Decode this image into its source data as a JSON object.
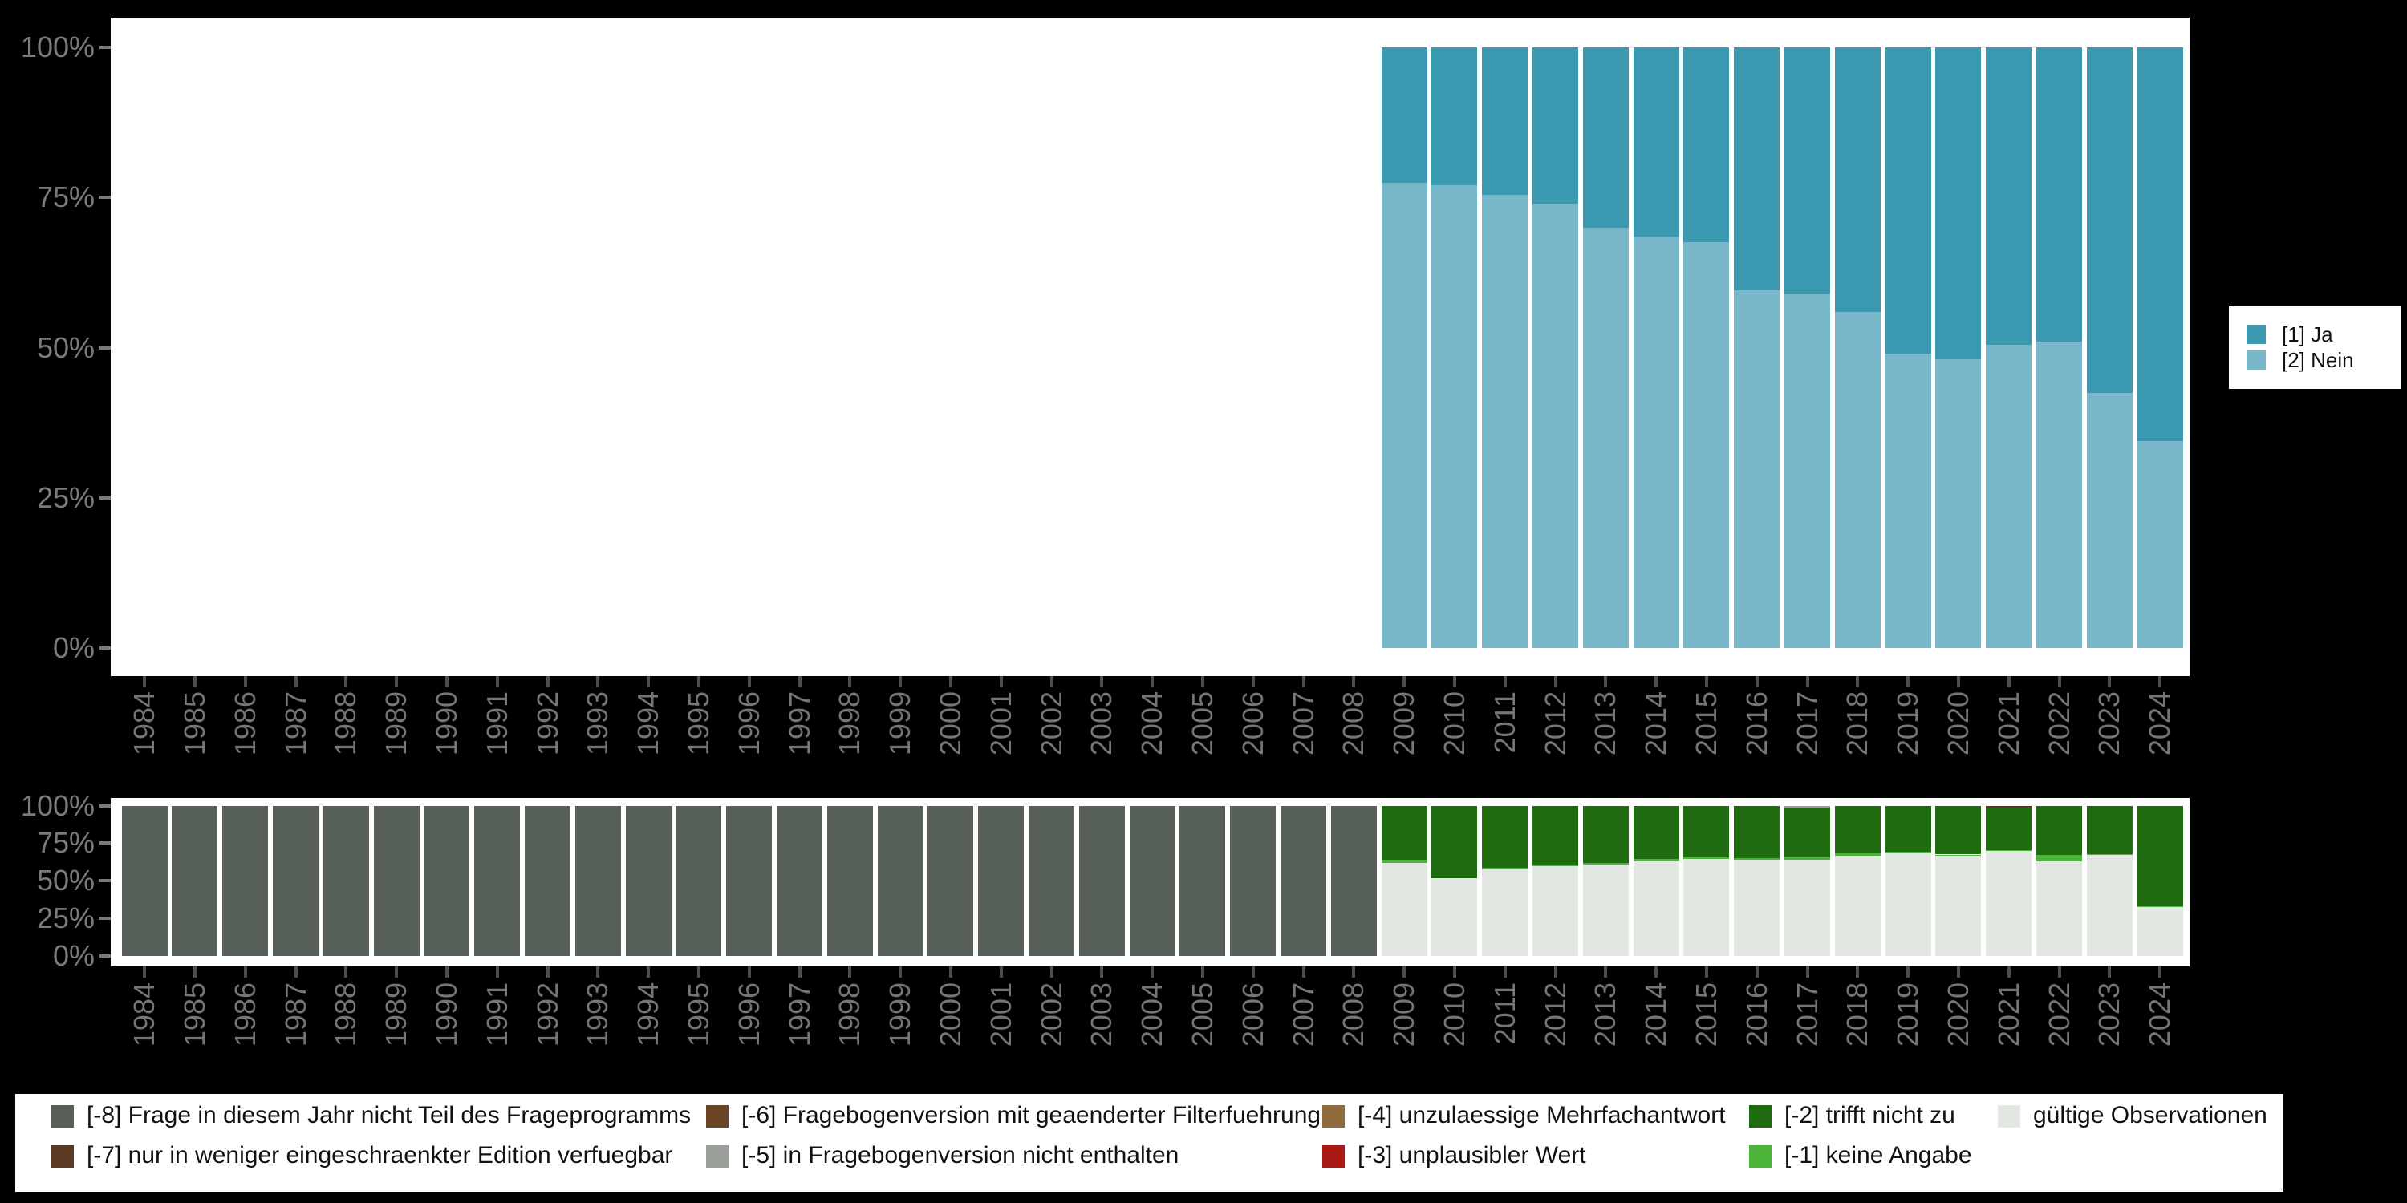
{
  "colors": {
    "ja": "#3a98b1",
    "nein": "#79b7ca",
    "m8": "#58605a",
    "m7": "#5a3a22",
    "m6": "#6b4423",
    "m5": "#9a9f9a",
    "m4": "#916b3e",
    "m3": "#a91a14",
    "m2": "#1f6d10",
    "m1": "#4cb43a",
    "valid": "#e3e7e1"
  },
  "axis": {
    "y_tick_labels": [
      "0%",
      "25%",
      "50%",
      "75%",
      "100%"
    ],
    "years": [
      1984,
      1985,
      1986,
      1987,
      1988,
      1989,
      1990,
      1991,
      1992,
      1993,
      1994,
      1995,
      1996,
      1997,
      1998,
      1999,
      2000,
      2001,
      2002,
      2003,
      2004,
      2005,
      2006,
      2007,
      2008,
      2009,
      2010,
      2011,
      2012,
      2013,
      2014,
      2015,
      2016,
      2017,
      2018,
      2019,
      2020,
      2021,
      2022,
      2023,
      2024
    ]
  },
  "top_legend": {
    "items": [
      {
        "label": "[1] Ja",
        "color_key": "ja"
      },
      {
        "label": "[2] Nein",
        "color_key": "nein"
      }
    ]
  },
  "bottom_legend": {
    "rows": [
      [
        {
          "label": "[-8] Frage in diesem Jahr nicht Teil des Frageprogramms",
          "color_key": "m8"
        },
        {
          "label": "[-6] Fragebogenversion mit geaenderter Filterfuehrung",
          "color_key": "m6"
        },
        {
          "label": "[-4] unzulaessige Mehrfachantwort",
          "color_key": "m4"
        },
        {
          "label": "[-2] trifft nicht zu",
          "color_key": "m2"
        },
        {
          "label": "gültige Observationen",
          "color_key": "valid"
        }
      ],
      [
        {
          "label": "[-7] nur in weniger eingeschraenkter Edition verfuegbar",
          "color_key": "m7"
        },
        {
          "label": "[-5] in Fragebogenversion nicht enthalten",
          "color_key": "m5"
        },
        {
          "label": "[-3] unplausibler Wert",
          "color_key": "m3"
        },
        {
          "label": "[-1] keine Angabe",
          "color_key": "m1"
        }
      ]
    ]
  },
  "chart_data": [
    {
      "type": "bar",
      "stacked": true,
      "title": "",
      "xlabel": "",
      "ylabel": "",
      "ylim": [
        0,
        100
      ],
      "yticks": [
        "0%",
        "25%",
        "50%",
        "75%",
        "100%"
      ],
      "grid": false,
      "legend_position": "right",
      "x_axis_categories": [
        1984,
        1985,
        1986,
        1987,
        1988,
        1989,
        1990,
        1991,
        1992,
        1993,
        1994,
        1995,
        1996,
        1997,
        1998,
        1999,
        2000,
        2001,
        2002,
        2003,
        2004,
        2005,
        2006,
        2007,
        2008,
        2009,
        2010,
        2011,
        2012,
        2013,
        2014,
        2015,
        2016,
        2017,
        2018,
        2019,
        2020,
        2021,
        2022,
        2023,
        2024
      ],
      "categories": [
        2009,
        2010,
        2011,
        2012,
        2013,
        2014,
        2015,
        2016,
        2017,
        2018,
        2019,
        2020,
        2021,
        2022,
        2023,
        2024
      ],
      "series": [
        {
          "name": "[1] Ja",
          "color_key": "ja",
          "values": [
            22.5,
            23,
            24.5,
            26,
            30,
            31.5,
            32.5,
            40.5,
            41,
            44,
            51,
            52,
            49.5,
            49,
            57.5,
            65.5
          ]
        },
        {
          "name": "[2] Nein",
          "color_key": "nein",
          "values": [
            77.5,
            77,
            75.5,
            74,
            70,
            68.5,
            67.5,
            59.5,
            59,
            56,
            49,
            48,
            50.5,
            51,
            42.5,
            34.5
          ]
        }
      ],
      "note_no_bars_before": 2009
    },
    {
      "type": "bar",
      "stacked": true,
      "title": "",
      "xlabel": "",
      "ylabel": "",
      "ylim": [
        0,
        100
      ],
      "yticks": [
        "0%",
        "25%",
        "50%",
        "75%",
        "100%"
      ],
      "grid": false,
      "categories": [
        1984,
        1985,
        1986,
        1987,
        1988,
        1989,
        1990,
        1991,
        1992,
        1993,
        1994,
        1995,
        1996,
        1997,
        1998,
        1999,
        2000,
        2001,
        2002,
        2003,
        2004,
        2005,
        2006,
        2007,
        2008,
        2009,
        2010,
        2011,
        2012,
        2013,
        2014,
        2015,
        2016,
        2017,
        2018,
        2019,
        2020,
        2021,
        2022,
        2023,
        2024
      ],
      "segments_by_year": {
        "1984": [
          [
            "m8",
            100
          ]
        ],
        "1985": [
          [
            "m8",
            100
          ]
        ],
        "1986": [
          [
            "m8",
            100
          ]
        ],
        "1987": [
          [
            "m8",
            100
          ]
        ],
        "1988": [
          [
            "m8",
            100
          ]
        ],
        "1989": [
          [
            "m8",
            100
          ]
        ],
        "1990": [
          [
            "m8",
            100
          ]
        ],
        "1991": [
          [
            "m8",
            100
          ]
        ],
        "1992": [
          [
            "m8",
            100
          ]
        ],
        "1993": [
          [
            "m8",
            100
          ]
        ],
        "1994": [
          [
            "m8",
            100
          ]
        ],
        "1995": [
          [
            "m8",
            100
          ]
        ],
        "1996": [
          [
            "m8",
            100
          ]
        ],
        "1997": [
          [
            "m8",
            100
          ]
        ],
        "1998": [
          [
            "m8",
            100
          ]
        ],
        "1999": [
          [
            "m8",
            100
          ]
        ],
        "2000": [
          [
            "m8",
            100
          ]
        ],
        "2001": [
          [
            "m8",
            100
          ]
        ],
        "2002": [
          [
            "m8",
            100
          ]
        ],
        "2003": [
          [
            "m8",
            100
          ]
        ],
        "2004": [
          [
            "m8",
            100
          ]
        ],
        "2005": [
          [
            "m8",
            100
          ]
        ],
        "2006": [
          [
            "m8",
            100
          ]
        ],
        "2007": [
          [
            "m8",
            100
          ]
        ],
        "2008": [
          [
            "m8",
            100
          ]
        ],
        "2009": [
          [
            "valid",
            62
          ],
          [
            "m1",
            2
          ],
          [
            "m2",
            36
          ]
        ],
        "2010": [
          [
            "valid",
            51.5
          ],
          [
            "m2",
            48.5
          ]
        ],
        "2011": [
          [
            "valid",
            57.5
          ],
          [
            "m1",
            1
          ],
          [
            "m2",
            41.5
          ]
        ],
        "2012": [
          [
            "valid",
            60
          ],
          [
            "m1",
            1
          ],
          [
            "m2",
            39
          ]
        ],
        "2013": [
          [
            "valid",
            61
          ],
          [
            "m1",
            1
          ],
          [
            "m2",
            38
          ]
        ],
        "2014": [
          [
            "valid",
            63
          ],
          [
            "m1",
            1.5
          ],
          [
            "m2",
            35.5
          ]
        ],
        "2015": [
          [
            "valid",
            64.5
          ],
          [
            "m1",
            1
          ],
          [
            "m2",
            34.5
          ]
        ],
        "2016": [
          [
            "valid",
            64
          ],
          [
            "m1",
            1
          ],
          [
            "m2",
            35
          ]
        ],
        "2017": [
          [
            "valid",
            64
          ],
          [
            "m1",
            1.5
          ],
          [
            "m2",
            33
          ],
          [
            "m5",
            1.5
          ]
        ],
        "2018": [
          [
            "valid",
            66.5
          ],
          [
            "m1",
            2
          ],
          [
            "m2",
            31.5
          ]
        ],
        "2019": [
          [
            "valid",
            69
          ],
          [
            "m1",
            0.5
          ],
          [
            "m2",
            30.5
          ]
        ],
        "2020": [
          [
            "valid",
            66.5
          ],
          [
            "m1",
            1
          ],
          [
            "m2",
            32.5
          ]
        ],
        "2021": [
          [
            "valid",
            70
          ],
          [
            "m1",
            0.5
          ],
          [
            "m2",
            28
          ],
          [
            "m7",
            1.5
          ]
        ],
        "2022": [
          [
            "valid",
            63
          ],
          [
            "m1",
            4
          ],
          [
            "m2",
            33
          ]
        ],
        "2023": [
          [
            "valid",
            67
          ],
          [
            "m1",
            1
          ],
          [
            "m2",
            32
          ]
        ],
        "2024": [
          [
            "valid",
            32.5
          ],
          [
            "m1",
            0.5
          ],
          [
            "m2",
            67
          ]
        ]
      }
    }
  ]
}
